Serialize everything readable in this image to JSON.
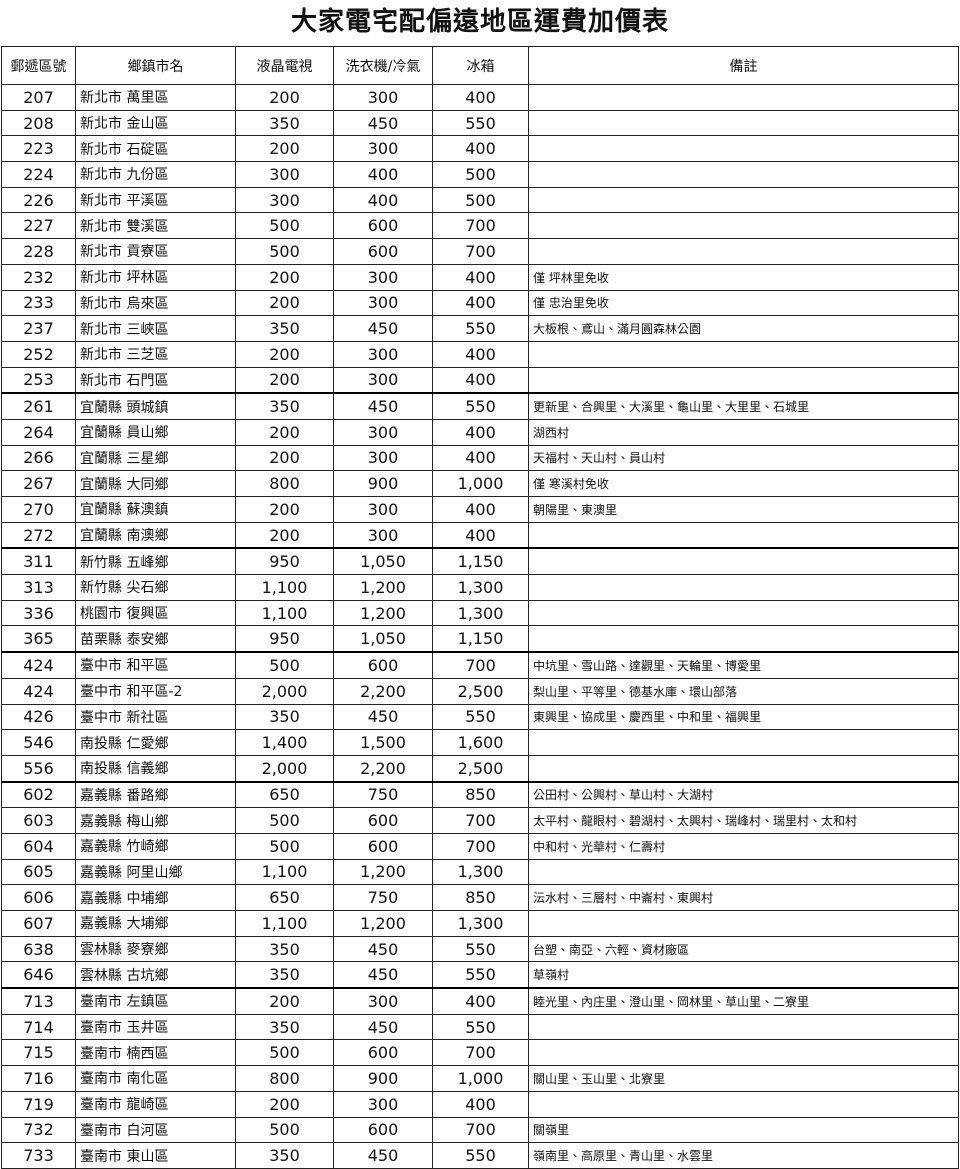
{
  "title": "大家電宅配偏遠地區運費加價表",
  "table": {
    "header": [
      "郵遞區號",
      "鄉鎮市名",
      "液晶電視",
      "洗衣機/冷氣",
      "冰箱",
      "備註"
    ],
    "rows": [
      [
        "207",
        "新北市 萬里區",
        "200",
        "300",
        "400",
        null
      ],
      [
        "208",
        "新北市 金山區",
        "350",
        "450",
        "550",
        null
      ],
      [
        "223",
        "新北市 石碇區",
        "200",
        "300",
        "400",
        null
      ],
      [
        "224",
        "新北市 九份區",
        "300",
        "400",
        "500",
        null
      ],
      [
        "226",
        "新北市 平溪區",
        "300",
        "400",
        "500",
        null
      ],
      [
        "227",
        "新北市 雙溪區",
        "500",
        "600",
        "700",
        null
      ],
      [
        "228",
        "新北市 貢寮區",
        "500",
        "600",
        "700",
        null
      ],
      [
        "232",
        "新北市 坪林區",
        "200",
        "300",
        "400",
        "僅 坪林里免收"
      ],
      [
        "233",
        "新北市 烏來區",
        "200",
        "300",
        "400",
        "僅 忠治里免收"
      ],
      [
        "237",
        "新北市 三峽區",
        "350",
        "450",
        "550",
        "大板根、鳶山、滿月圓森林公園"
      ],
      [
        "252",
        "新北市 三芝區",
        "200",
        "300",
        "400",
        null
      ],
      [
        "253",
        "新北市 石門區",
        "200",
        "300",
        "400",
        null
      ],
      [
        "261",
        "宜蘭縣 頭城鎮",
        "350",
        "450",
        "550",
        "更新里、合興里、大溪里、龜山里、大里里、石城里"
      ],
      [
        "264",
        "宜蘭縣 員山鄉",
        "200",
        "300",
        "400",
        "湖西村"
      ],
      [
        "266",
        "宜蘭縣 三星鄉",
        "200",
        "300",
        "400",
        "天福村、天山村、員山村"
      ],
      [
        "267",
        "宜蘭縣 大同鄉",
        "800",
        "900",
        "1,000",
        "僅 寒溪村免收"
      ],
      [
        "270",
        "宜蘭縣 蘇澳鎮",
        "200",
        "300",
        "400",
        "朝陽里、東澳里"
      ],
      [
        "272",
        "宜蘭縣 南澳鄉",
        "200",
        "300",
        "400",
        null
      ],
      [
        "311",
        "新竹縣 五峰鄉",
        "950",
        "1,050",
        "1,150",
        null
      ],
      [
        "313",
        "新竹縣 尖石鄉",
        "1,100",
        "1,200",
        "1,300",
        null
      ],
      [
        "336",
        "桃園市 復興區",
        "1,100",
        "1,200",
        "1,300",
        null
      ],
      [
        "365",
        "苗栗縣 泰安鄉",
        "950",
        "1,050",
        "1,150",
        null
      ],
      [
        "424",
        "臺中市 和平區",
        "500",
        "600",
        "700",
        "中坑里、雪山路、達觀里、天輪里、博愛里"
      ],
      [
        "424",
        "臺中市 和平區-2",
        "2,000",
        "2,200",
        "2,500",
        "梨山里、平等里、德基水庫、環山部落"
      ],
      [
        "426",
        "臺中市 新社區",
        "350",
        "450",
        "550",
        "東興里、協成里、慶西里、中和里、福興里"
      ],
      [
        "546",
        "南投縣 仁愛鄉",
        "1,400",
        "1,500",
        "1,600",
        null
      ],
      [
        "556",
        "南投縣 信義鄉",
        "2,000",
        "2,200",
        "2,500",
        null
      ],
      [
        "602",
        "嘉義縣 番路鄉",
        "650",
        "750",
        "850",
        "公田村、公興村、草山村、大湖村"
      ],
      [
        "603",
        "嘉義縣 梅山鄉",
        "500",
        "600",
        "700",
        "太平村、龍眼村、碧湖村、太興村、瑞峰村、瑞里村、太和村"
      ],
      [
        "604",
        "嘉義縣 竹崎鄉",
        "500",
        "600",
        "700",
        "中和村、光華村、仁壽村"
      ],
      [
        "605",
        "嘉義縣 阿里山鄉",
        "1,100",
        "1,200",
        "1,300",
        null
      ],
      [
        "606",
        "嘉義縣 中埔鄉",
        "650",
        "750",
        "850",
        "沄水村、三層村、中崙村、東興村"
      ],
      [
        "607",
        "嘉義縣 大埔鄉",
        "1,100",
        "1,200",
        "1,300",
        null
      ],
      [
        "638",
        "雲林縣 麥寮鄉",
        "350",
        "450",
        "550",
        "台塑、南亞、六輕、資材廠區"
      ],
      [
        "646",
        "雲林縣 古坑鄉",
        "350",
        "450",
        "550",
        "草嶺村"
      ],
      [
        "713",
        "臺南市 左鎮區",
        "200",
        "300",
        "400",
        "睦光里、內庄里、澄山里、岡林里、草山里、二寮里"
      ],
      [
        "714",
        "臺南市 玉井區",
        "350",
        "450",
        "550",
        null
      ],
      [
        "715",
        "臺南市 楠西區",
        "500",
        "600",
        "700",
        null
      ],
      [
        "716",
        "臺南市 南化區",
        "800",
        "900",
        "1,000",
        "關山里、玉山里、北寮里"
      ],
      [
        "719",
        "臺南市 龍崎區",
        "200",
        "300",
        "400",
        null
      ],
      [
        "732",
        "臺南市 白河區",
        "500",
        "600",
        "700",
        "關嶺里"
      ],
      [
        "733",
        "臺南市 東山區",
        "350",
        "450",
        "550",
        "嶺南里、高原里、青山里、水雲里"
      ]
    ]
  }
}
